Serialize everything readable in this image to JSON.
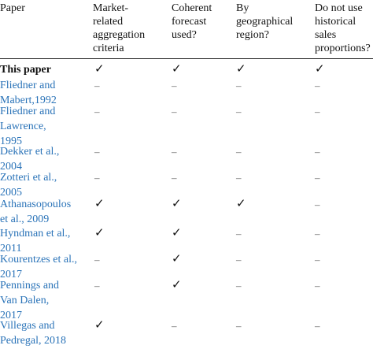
{
  "headers": [
    "Paper",
    "Market-\nrelated\naggregation\ncriteria",
    "Coherent\nforecast\nused?",
    "By\ngeographical\nregion?",
    "Do not use\nhistorical\nsales\nproportions?"
  ],
  "rows": [
    {
      "paper": "This paper",
      "marks": [
        "✓",
        "✓",
        "✓",
        "✓"
      ]
    },
    {
      "paper": "Fliedner and\nMabert,1992",
      "marks": [
        "–",
        "–",
        "–",
        "–"
      ]
    },
    {
      "paper": "Fliedner and\nLawrence,\n1995",
      "marks": [
        "–",
        "–",
        "–",
        "–"
      ]
    },
    {
      "paper": "Dekker et al.,\n2004",
      "marks": [
        "–",
        "–",
        "–",
        "–"
      ]
    },
    {
      "paper": "Zotteri et al.,\n2005",
      "marks": [
        "–",
        "–",
        "–",
        "–"
      ]
    },
    {
      "paper": "Athanasopoulos\net al., 2009",
      "marks": [
        "✓",
        "✓",
        "✓",
        "–"
      ]
    },
    {
      "paper": "Hyndman et al.,\n2011",
      "marks": [
        "✓",
        "✓",
        "–",
        "–"
      ]
    },
    {
      "paper": "Kourentzes et al.,\n2017",
      "marks": [
        "–",
        "✓",
        "–",
        "–"
      ]
    },
    {
      "paper": "Pennings and\nVan Dalen,\n2017",
      "marks": [
        "–",
        "✓",
        "–",
        "–"
      ]
    },
    {
      "paper": "Villegas and\nPedregal, 2018",
      "marks": [
        "✓",
        "–",
        "–",
        "–"
      ]
    }
  ]
}
